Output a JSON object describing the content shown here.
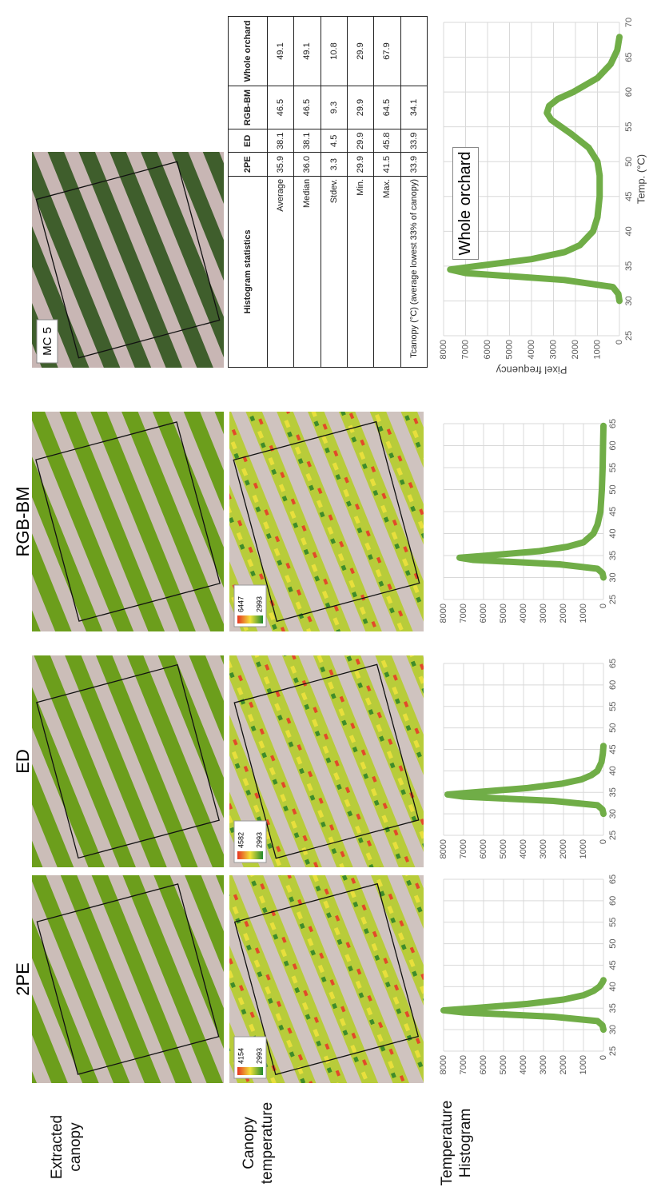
{
  "row_labels": [
    "Extracted canopy",
    "Canopy temperature",
    "Temperature Histogram"
  ],
  "column_headers": [
    "2PE",
    "ED",
    "RGB-BM"
  ],
  "map_label": "MC 5",
  "temperature_legends": [
    {
      "max": 4154,
      "min": 2993
    },
    {
      "max": 4582,
      "min": 2993
    },
    {
      "max": 6447,
      "min": 2993
    }
  ],
  "table": {
    "header": [
      "Histogram statistics",
      "2PE",
      "ED",
      "RGB-BM",
      "Whole orchard"
    ],
    "rows": [
      [
        "Average",
        "35.9",
        "38.1",
        "46.5",
        "49.1"
      ],
      [
        "Median",
        "36.0",
        "38.1",
        "46.5",
        "49.1"
      ],
      [
        "Stdev.",
        "3.3",
        "4.5",
        "9.3",
        "10.8"
      ],
      [
        "Min.",
        "29.9",
        "29.9",
        "29.9",
        "29.9"
      ],
      [
        "Max.",
        "41.5",
        "45.8",
        "64.5",
        "67.9"
      ],
      [
        "Tcanopy (°C) (average lowest 33% of canopy)",
        "33.9",
        "33.9",
        "34.1"
      ]
    ]
  },
  "chart_data": [
    {
      "type": "line",
      "x": [
        30,
        31,
        32,
        33,
        34,
        34.5,
        35,
        36,
        37,
        38,
        39,
        40,
        41,
        41.5
      ],
      "series": [
        {
          "color": "#70ad47",
          "values": [
            0,
            50,
            300,
            2500,
            7000,
            8000,
            6500,
            3800,
            2000,
            1000,
            500,
            200,
            50,
            0
          ]
        }
      ],
      "xlim": [
        25,
        65
      ],
      "xticks": [
        25,
        30,
        35,
        40,
        45,
        50,
        55,
        60,
        65
      ],
      "ylim": [
        0,
        8000
      ],
      "yticks": [
        0,
        1000,
        2000,
        3000,
        4000,
        5000,
        6000,
        7000,
        8000
      ],
      "grid": true
    },
    {
      "type": "line",
      "x": [
        30,
        31,
        32,
        33,
        34,
        34.5,
        35,
        36,
        37,
        38,
        39,
        40,
        42,
        44,
        45.8
      ],
      "series": [
        {
          "color": "#70ad47",
          "values": [
            0,
            50,
            300,
            2500,
            7000,
            7800,
            6500,
            3800,
            2100,
            1100,
            600,
            300,
            100,
            30,
            0
          ]
        }
      ],
      "xlim": [
        25,
        65
      ],
      "xticks": [
        25,
        30,
        35,
        40,
        45,
        50,
        55,
        60,
        65
      ],
      "ylim": [
        0,
        8000
      ],
      "yticks": [
        0,
        1000,
        2000,
        3000,
        4000,
        5000,
        6000,
        7000,
        8000
      ],
      "grid": true
    },
    {
      "type": "line",
      "x": [
        30,
        31,
        32,
        33,
        34,
        34.5,
        35,
        36,
        37,
        38,
        40,
        42,
        45,
        50,
        55,
        60,
        64.5
      ],
      "series": [
        {
          "color": "#70ad47",
          "values": [
            0,
            50,
            300,
            2200,
            6500,
            7200,
            5800,
            3200,
            1800,
            1000,
            500,
            300,
            150,
            80,
            40,
            20,
            0
          ]
        }
      ],
      "xlim": [
        25,
        65
      ],
      "xticks": [
        25,
        30,
        35,
        40,
        45,
        50,
        55,
        60,
        65
      ],
      "ylim": [
        0,
        8000
      ],
      "yticks": [
        0,
        1000,
        2000,
        3000,
        4000,
        5000,
        6000,
        7000,
        8000
      ],
      "grid": true
    },
    {
      "type": "line",
      "annotation": "Whole orchard",
      "xlabel": "Temp. (°C)",
      "ylabel": "Pixel frequency",
      "x": [
        30,
        31,
        32,
        33,
        34,
        34.5,
        35,
        36,
        37,
        38,
        40,
        42,
        45,
        48,
        50,
        52,
        54,
        56,
        57,
        58,
        59,
        60,
        62,
        64,
        66,
        67.9
      ],
      "series": [
        {
          "color": "#70ad47",
          "values": [
            0,
            50,
            300,
            2500,
            7000,
            7700,
            6500,
            4000,
            2500,
            1800,
            1200,
            1000,
            900,
            900,
            1000,
            1400,
            2200,
            3100,
            3300,
            3200,
            2800,
            2100,
            1000,
            400,
            100,
            0
          ]
        }
      ],
      "xlim": [
        25,
        70
      ],
      "xticks": [
        25,
        30,
        35,
        40,
        45,
        50,
        55,
        60,
        65,
        70
      ],
      "ylim": [
        0,
        8000
      ],
      "yticks": [
        0,
        1000,
        2000,
        3000,
        4000,
        5000,
        6000,
        7000,
        8000
      ],
      "grid": true
    }
  ]
}
